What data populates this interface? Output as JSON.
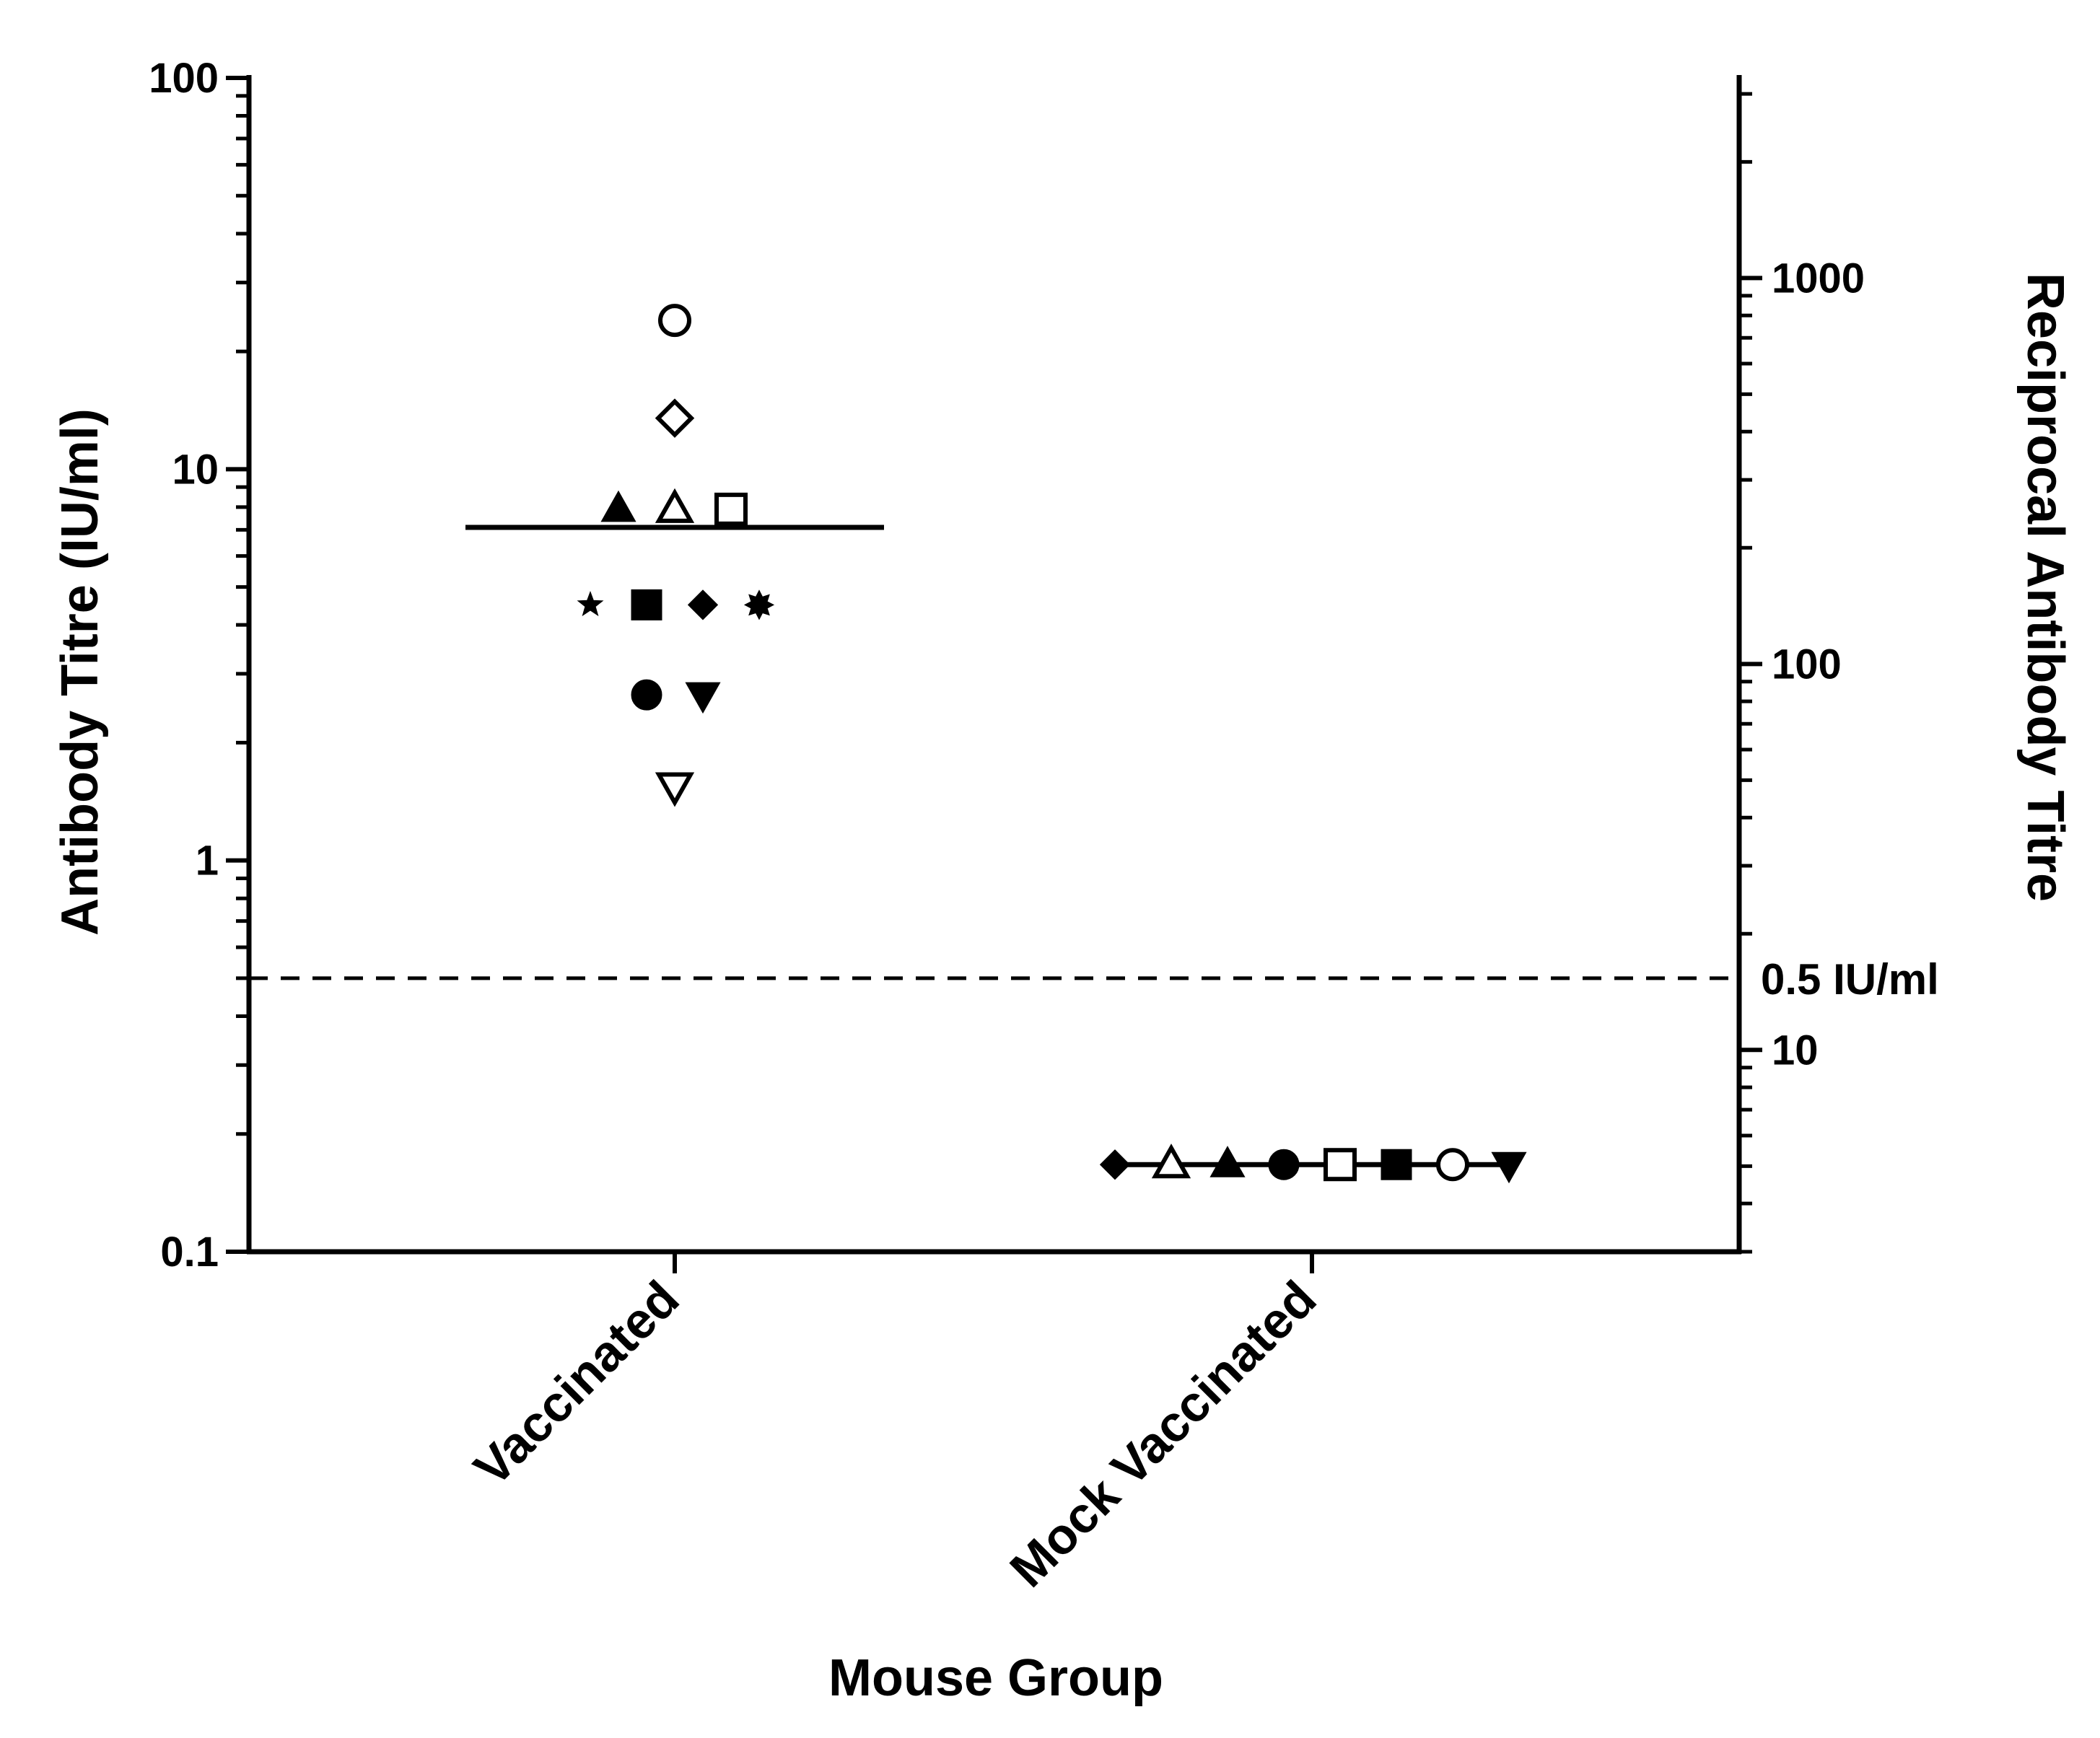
{
  "chart_data": {
    "type": "scatter",
    "xlabel": "Mouse Group",
    "ylabel": "Antibody Titre (IU/ml)",
    "y2label": "Reciprocal Antibody Titre",
    "categories": [
      "Vaccinated",
      "Mock Vaccinated"
    ],
    "y_scale": "log",
    "ylim": [
      0.1,
      100
    ],
    "y_ticks": [
      {
        "value": 0.1,
        "label": "0.1"
      },
      {
        "value": 1,
        "label": "1"
      },
      {
        "value": 10,
        "label": "10"
      },
      {
        "value": 100,
        "label": "100"
      }
    ],
    "y2_scale": "log",
    "y2lim": [
      3,
      3300
    ],
    "y2_ticks": [
      {
        "value": 10,
        "label": "10"
      },
      {
        "value": 100,
        "label": "100"
      },
      {
        "value": 1000,
        "label": "1000"
      }
    ],
    "reference_line": {
      "value": 0.5,
      "label": "0.5 IU/ml",
      "style": "dashed"
    },
    "groups": [
      {
        "category": "Vaccinated",
        "mean": 7.1,
        "points": [
          {
            "y": 24,
            "offset": 0,
            "marker": "circle-open"
          },
          {
            "y": 13.5,
            "offset": 0,
            "marker": "diamond-open"
          },
          {
            "y": 7.9,
            "offset": -1,
            "marker": "triangle-filled"
          },
          {
            "y": 7.9,
            "offset": 0,
            "marker": "triangle-open"
          },
          {
            "y": 7.9,
            "offset": 1,
            "marker": "square-open"
          },
          {
            "y": 4.5,
            "offset": -1.5,
            "marker": "star-filled"
          },
          {
            "y": 4.5,
            "offset": -0.5,
            "marker": "square-filled"
          },
          {
            "y": 4.5,
            "offset": 0.5,
            "marker": "diamond-filled"
          },
          {
            "y": 4.5,
            "offset": 1.5,
            "marker": "asterisk-filled"
          },
          {
            "y": 2.65,
            "offset": -0.5,
            "marker": "circle-filled"
          },
          {
            "y": 2.65,
            "offset": 0.5,
            "marker": "triangle-down-filled"
          },
          {
            "y": 1.55,
            "offset": 0,
            "marker": "triangle-down-open"
          }
        ]
      },
      {
        "category": "Mock Vaccinated",
        "mean": 0.167,
        "points": [
          {
            "y": 0.167,
            "offset": -3.5,
            "marker": "diamond-filled"
          },
          {
            "y": 0.167,
            "offset": -2.5,
            "marker": "triangle-open"
          },
          {
            "y": 0.167,
            "offset": -1.5,
            "marker": "triangle-filled"
          },
          {
            "y": 0.167,
            "offset": -0.5,
            "marker": "circle-filled"
          },
          {
            "y": 0.167,
            "offset": 0.5,
            "marker": "square-open"
          },
          {
            "y": 0.167,
            "offset": 1.5,
            "marker": "square-filled"
          },
          {
            "y": 0.167,
            "offset": 2.5,
            "marker": "circle-open"
          },
          {
            "y": 0.167,
            "offset": 3.5,
            "marker": "triangle-down-filled"
          }
        ]
      }
    ]
  }
}
